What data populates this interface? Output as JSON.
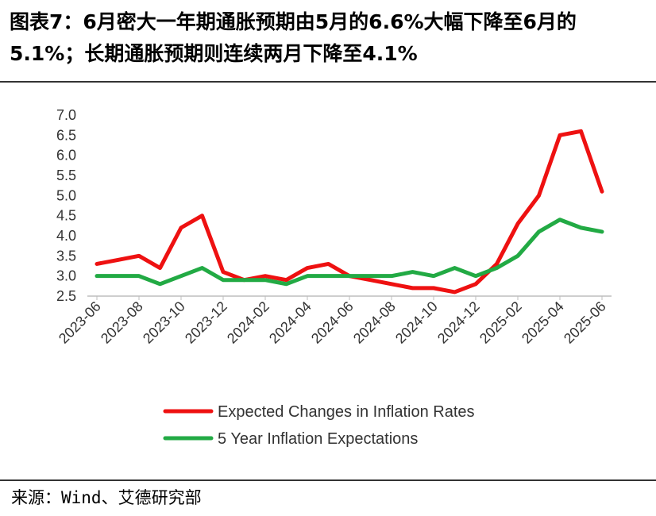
{
  "header": {
    "title": "图表7：6月密大一年期通胀预期由5月的6.6%大幅下降至6月的5.1%；长期通胀预期则连续两月下降至4.1%"
  },
  "footer": {
    "source": "来源：Wind、艾德研究部"
  },
  "chart_data": {
    "type": "line",
    "title": "",
    "xlabel": "",
    "ylabel": "",
    "ylim": [
      2.5,
      7.0
    ],
    "yticks": [
      "7.0",
      "6.5",
      "6.0",
      "5.5",
      "5.0",
      "4.5",
      "4.0",
      "3.5",
      "3.0",
      "2.5"
    ],
    "ytick_values": [
      7.0,
      6.5,
      6.0,
      5.5,
      5.0,
      4.5,
      4.0,
      3.5,
      3.0,
      2.5
    ],
    "x": [
      "2023-06",
      "2023-07",
      "2023-08",
      "2023-09",
      "2023-10",
      "2023-11",
      "2023-12",
      "2024-01",
      "2024-02",
      "2024-03",
      "2024-04",
      "2024-05",
      "2024-06",
      "2024-07",
      "2024-08",
      "2024-09",
      "2024-10",
      "2024-11",
      "2024-12",
      "2025-01",
      "2025-02",
      "2025-03",
      "2025-04",
      "2025-05",
      "2025-06"
    ],
    "xticks": [
      "2023-06",
      "2023-08",
      "2023-10",
      "2023-12",
      "2024-02",
      "2024-04",
      "2024-06",
      "2024-08",
      "2024-10",
      "2024-12",
      "2025-02",
      "2025-04",
      "2025-06"
    ],
    "legend_position": "bottom",
    "series": [
      {
        "name": "Expected Changes in Inflation Rates",
        "color": "#ee1111",
        "values": [
          3.3,
          3.4,
          3.5,
          3.2,
          4.2,
          4.5,
          3.1,
          2.9,
          3.0,
          2.9,
          3.2,
          3.3,
          3.0,
          2.9,
          2.8,
          2.7,
          2.7,
          2.6,
          2.8,
          3.3,
          4.3,
          5.0,
          6.5,
          6.6,
          5.1
        ]
      },
      {
        "name": "5 Year Inflation Expectations",
        "color": "#22aa44",
        "values": [
          3.0,
          3.0,
          3.0,
          2.8,
          3.0,
          3.2,
          2.9,
          2.9,
          2.9,
          2.8,
          3.0,
          3.0,
          3.0,
          3.0,
          3.0,
          3.1,
          3.0,
          3.2,
          3.0,
          3.2,
          3.5,
          4.1,
          4.4,
          4.2,
          4.1
        ]
      }
    ]
  }
}
